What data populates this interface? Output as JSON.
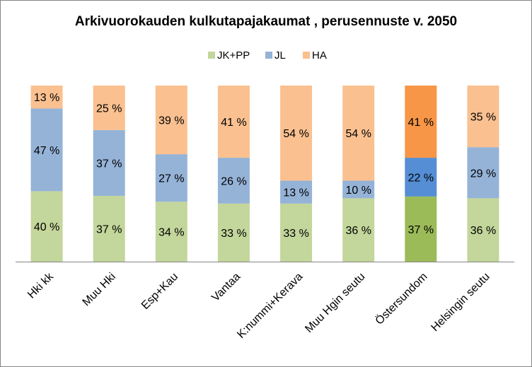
{
  "chart_data": {
    "type": "bar",
    "stacked": true,
    "normalized": true,
    "title": "Arkivuorokauden kulkutapajakaumat , perusennuste v. 2050",
    "legend_position": "top",
    "categories": [
      "Hki kk",
      "Muu Hki",
      "Esp+Kau",
      "Vantaa",
      "K:nummi+Kerava",
      "Muu Hgin seutu",
      "Östersundom",
      "Helsingin seutu"
    ],
    "series": [
      {
        "name": "JK+PP",
        "color": "#c3d69b",
        "values": [
          40,
          37,
          34,
          33,
          33,
          36,
          37,
          36
        ],
        "labels": [
          "40 %",
          "37 %",
          "34 %",
          "33 %",
          "33 %",
          "36 %",
          "37 %",
          "36 %"
        ]
      },
      {
        "name": "JL",
        "color": "#95b3d7",
        "values": [
          47,
          37,
          27,
          26,
          13,
          10,
          22,
          29
        ],
        "labels": [
          "47 %",
          "37 %",
          "27 %",
          "26 %",
          "13 %",
          "10 %",
          "22 %",
          "29 %"
        ]
      },
      {
        "name": "HA",
        "color": "#fac090",
        "values": [
          13,
          25,
          39,
          41,
          54,
          54,
          41,
          35
        ],
        "labels": [
          "13 %",
          "25 %",
          "39 %",
          "41 %",
          "54 %",
          "54 %",
          "41 %",
          "35 %"
        ]
      }
    ],
    "highlight": {
      "category": "Östersundom",
      "colors": [
        "#9bbb59",
        "#558ed5",
        "#f79646"
      ]
    },
    "ylim": [
      0,
      100
    ],
    "grid": false,
    "colors": {
      "axis": "#868686",
      "frame": "#868686"
    }
  }
}
